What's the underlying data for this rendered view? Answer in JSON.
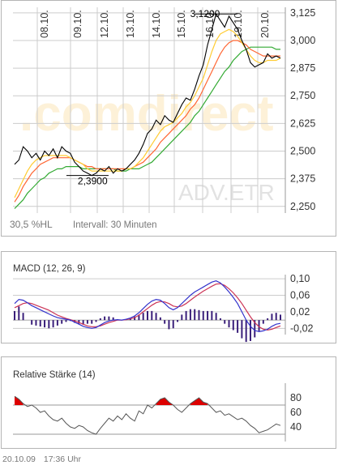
{
  "footer": {
    "date": "20.10.09",
    "time": "17:36 Uhr"
  },
  "colors": {
    "price": "#000000",
    "ma_short": "#ffcc33",
    "ma_mid": "#ff6633",
    "ma_long": "#33aa33",
    "macd": "#3333cc",
    "signal": "#cc3355",
    "histogram": "#3a1f7a",
    "rsi": "#555555",
    "rsi_fill": "#dd0000",
    "grid": "#cccccc"
  },
  "chart_data": [
    {
      "type": "line",
      "name": "price",
      "watermark_brand": ".comdirect",
      "watermark_exchange": "ADV.ETR",
      "stat_hl": "30,5 %HL",
      "interval": "Intervall: 30 Minuten",
      "x_tick_labels": [
        "08.10.",
        "09.10.",
        "12.10.",
        "13.10.",
        "14.10.",
        "15.10.",
        "16.10.",
        "19.10.",
        "20.10."
      ],
      "y_tick_labels": [
        "3,125",
        "3,000",
        "2,875",
        "2,750",
        "2,625",
        "2,500",
        "2,375",
        "2,250"
      ],
      "ylim": [
        2.22,
        3.15
      ],
      "annotations": [
        {
          "text": "3,1200",
          "value": 3.12,
          "x_index": 47
        },
        {
          "text": "2,3900",
          "value": 2.39,
          "x_index": 17
        }
      ],
      "series": [
        {
          "key": "price",
          "values": [
            2.44,
            2.46,
            2.52,
            2.5,
            2.47,
            2.49,
            2.46,
            2.5,
            2.48,
            2.51,
            2.47,
            2.52,
            2.5,
            2.49,
            2.45,
            2.43,
            2.41,
            2.4,
            2.39,
            2.4,
            2.42,
            2.41,
            2.43,
            2.4,
            2.42,
            2.41,
            2.42,
            2.44,
            2.46,
            2.49,
            2.53,
            2.58,
            2.6,
            2.64,
            2.62,
            2.66,
            2.64,
            2.63,
            2.67,
            2.71,
            2.74,
            2.73,
            2.78,
            2.84,
            2.89,
            2.98,
            3.05,
            3.12,
            3.09,
            3.06,
            3.11,
            3.08,
            3.05,
            3.0,
            2.96,
            2.9,
            2.88,
            2.89,
            2.9,
            2.94,
            2.92,
            2.93,
            2.92
          ]
        },
        {
          "key": "ma_short",
          "values": [
            2.29,
            2.33,
            2.37,
            2.41,
            2.44,
            2.46,
            2.47,
            2.48,
            2.48,
            2.48,
            2.48,
            2.48,
            2.48,
            2.47,
            2.46,
            2.45,
            2.44,
            2.42,
            2.41,
            2.41,
            2.41,
            2.41,
            2.41,
            2.41,
            2.41,
            2.41,
            2.42,
            2.42,
            2.43,
            2.45,
            2.47,
            2.5,
            2.53,
            2.56,
            2.59,
            2.61,
            2.62,
            2.63,
            2.65,
            2.67,
            2.7,
            2.72,
            2.75,
            2.79,
            2.83,
            2.89,
            2.95,
            3.0,
            3.03,
            3.04,
            3.05,
            3.04,
            3.02,
            2.99,
            2.96,
            2.93,
            2.91,
            2.9,
            2.9,
            2.91,
            2.91,
            2.91,
            2.92
          ]
        },
        {
          "key": "ma_mid",
          "values": [
            2.27,
            2.3,
            2.34,
            2.37,
            2.4,
            2.42,
            2.44,
            2.45,
            2.46,
            2.47,
            2.47,
            2.47,
            2.47,
            2.47,
            2.46,
            2.45,
            2.44,
            2.43,
            2.43,
            2.42,
            2.42,
            2.42,
            2.42,
            2.42,
            2.42,
            2.42,
            2.42,
            2.42,
            2.43,
            2.44,
            2.45,
            2.47,
            2.49,
            2.51,
            2.54,
            2.56,
            2.58,
            2.6,
            2.62,
            2.64,
            2.66,
            2.69,
            2.71,
            2.74,
            2.78,
            2.82,
            2.86,
            2.9,
            2.94,
            2.97,
            2.99,
            3.0,
            3.0,
            2.99,
            2.98,
            2.96,
            2.95,
            2.94,
            2.93,
            2.93,
            2.93,
            2.93,
            2.93
          ]
        },
        {
          "key": "ma_long",
          "values": [
            2.24,
            2.26,
            2.28,
            2.31,
            2.33,
            2.35,
            2.37,
            2.38,
            2.4,
            2.41,
            2.42,
            2.42,
            2.43,
            2.43,
            2.43,
            2.43,
            2.42,
            2.42,
            2.42,
            2.42,
            2.42,
            2.42,
            2.42,
            2.42,
            2.41,
            2.41,
            2.41,
            2.42,
            2.42,
            2.42,
            2.43,
            2.44,
            2.45,
            2.47,
            2.49,
            2.51,
            2.53,
            2.55,
            2.57,
            2.59,
            2.61,
            2.63,
            2.66,
            2.68,
            2.71,
            2.74,
            2.77,
            2.8,
            2.83,
            2.86,
            2.88,
            2.91,
            2.93,
            2.95,
            2.96,
            2.97,
            2.97,
            2.97,
            2.97,
            2.97,
            2.97,
            2.96,
            2.96
          ]
        }
      ]
    },
    {
      "type": "line",
      "name": "macd",
      "title": "MACD (12, 26, 9)",
      "y_tick_labels": [
        "0,10",
        "0,06",
        "0,02",
        "-0,02"
      ],
      "ylim": [
        -0.035,
        0.11
      ],
      "series": [
        {
          "key": "macd",
          "values": [
            0.04,
            0.05,
            0.048,
            0.042,
            0.035,
            0.03,
            0.025,
            0.02,
            0.015,
            0.01,
            0.006,
            0.004,
            0.002,
            0.0,
            -0.005,
            -0.01,
            -0.015,
            -0.018,
            -0.02,
            -0.018,
            -0.012,
            -0.006,
            -0.002,
            0.0,
            0.001,
            0.0,
            0.002,
            0.005,
            0.01,
            0.018,
            0.028,
            0.038,
            0.046,
            0.05,
            0.048,
            0.04,
            0.03,
            0.025,
            0.03,
            0.04,
            0.05,
            0.06,
            0.068,
            0.074,
            0.08,
            0.086,
            0.092,
            0.095,
            0.09,
            0.08,
            0.068,
            0.055,
            0.04,
            0.02,
            0.0,
            -0.015,
            -0.025,
            -0.028,
            -0.026,
            -0.022,
            -0.015,
            -0.01,
            -0.008
          ]
        },
        {
          "key": "signal",
          "values": [
            0.03,
            0.035,
            0.04,
            0.042,
            0.04,
            0.036,
            0.032,
            0.028,
            0.024,
            0.018,
            0.012,
            0.008,
            0.004,
            0.001,
            -0.002,
            -0.006,
            -0.01,
            -0.014,
            -0.016,
            -0.016,
            -0.014,
            -0.01,
            -0.006,
            -0.003,
            0.0,
            0.0,
            0.001,
            0.003,
            0.006,
            0.012,
            0.02,
            0.028,
            0.036,
            0.042,
            0.045,
            0.044,
            0.04,
            0.034,
            0.032,
            0.034,
            0.04,
            0.048,
            0.056,
            0.063,
            0.07,
            0.076,
            0.082,
            0.087,
            0.088,
            0.084,
            0.076,
            0.066,
            0.054,
            0.04,
            0.024,
            0.008,
            -0.006,
            -0.016,
            -0.022,
            -0.024,
            -0.022,
            -0.018,
            -0.014
          ]
        }
      ]
    },
    {
      "type": "line",
      "name": "rsi",
      "title": "Relative Stärke (14)",
      "y_tick_labels": [
        "80",
        "60",
        "40"
      ],
      "ylim": [
        20,
        100
      ],
      "bands": [
        70,
        30
      ],
      "series": [
        {
          "key": "rsi",
          "values": [
            82,
            78,
            72,
            68,
            70,
            66,
            60,
            62,
            55,
            50,
            48,
            52,
            45,
            40,
            38,
            42,
            40,
            35,
            32,
            30,
            38,
            45,
            52,
            48,
            55,
            50,
            58,
            52,
            48,
            62,
            58,
            70,
            66,
            72,
            78,
            80,
            74,
            70,
            64,
            60,
            66,
            72,
            76,
            80,
            74,
            72,
            66,
            60,
            62,
            56,
            58,
            54,
            50,
            52,
            48,
            42,
            38,
            32,
            34,
            36,
            40,
            44,
            42
          ]
        }
      ]
    }
  ]
}
